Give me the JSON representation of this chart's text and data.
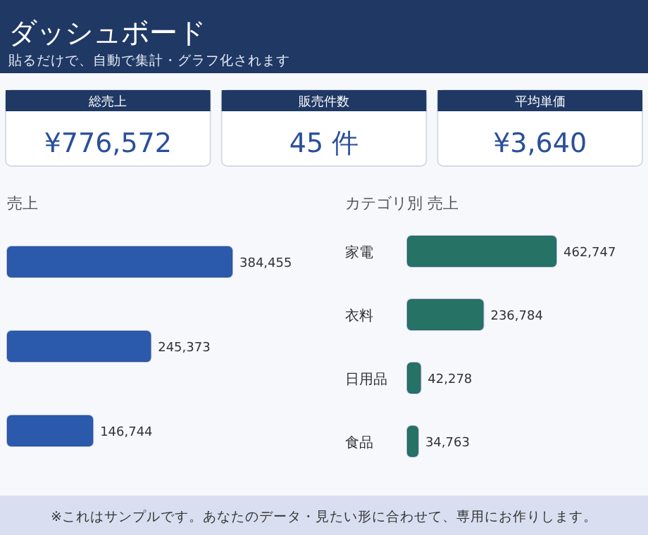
{
  "chart_data": [
    {
      "type": "other",
      "title": "ダッシュボード",
      "subtitle": "貼るだけで、自動で集計・グラフ化されます",
      "annotations": [
        "総売上",
        "¥776,572",
        "販売件数",
        "45 件",
        "平均単価",
        "¥3,640"
      ]
    },
    {
      "type": "bar",
      "orientation": "horizontal",
      "title": "売上",
      "categories": [
        null,
        null,
        null
      ],
      "values": [
        384455,
        245373,
        146744
      ],
      "color": "#2b5aad",
      "value_labels": [
        "384,455",
        "245,373",
        "146,744"
      ]
    },
    {
      "type": "bar",
      "orientation": "horizontal",
      "title": "カテゴリ別 売上",
      "categories": [
        "家電",
        "衣料",
        "日用品",
        "食品"
      ],
      "values": [
        462747,
        236784,
        42278,
        34763
      ],
      "color": "#267366",
      "value_labels": [
        "462,747",
        "236,784",
        "42,278",
        "34,763"
      ],
      "annotations": [
        "※これはサンプルです。あなたのデータ・見たい形に合わせて、専用にお作りします。"
      ]
    }
  ]
}
